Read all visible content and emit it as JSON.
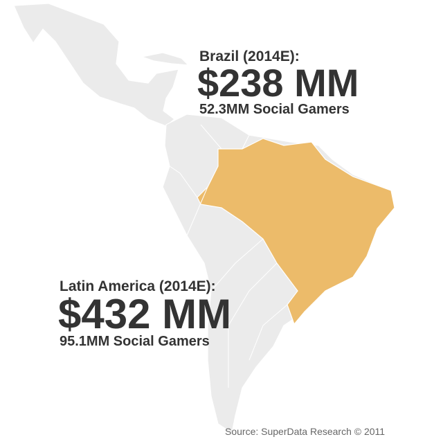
{
  "brazil": {
    "label": "Brazil (2014E):",
    "revenue": "$238 MM",
    "gamers": "52.3MM Social Gamers"
  },
  "latin_america": {
    "label": "Latin America (2014E):",
    "revenue": "$432 MM",
    "gamers": "95.1MM Social Gamers"
  },
  "source": "Source: SuperData Research © 2011"
}
